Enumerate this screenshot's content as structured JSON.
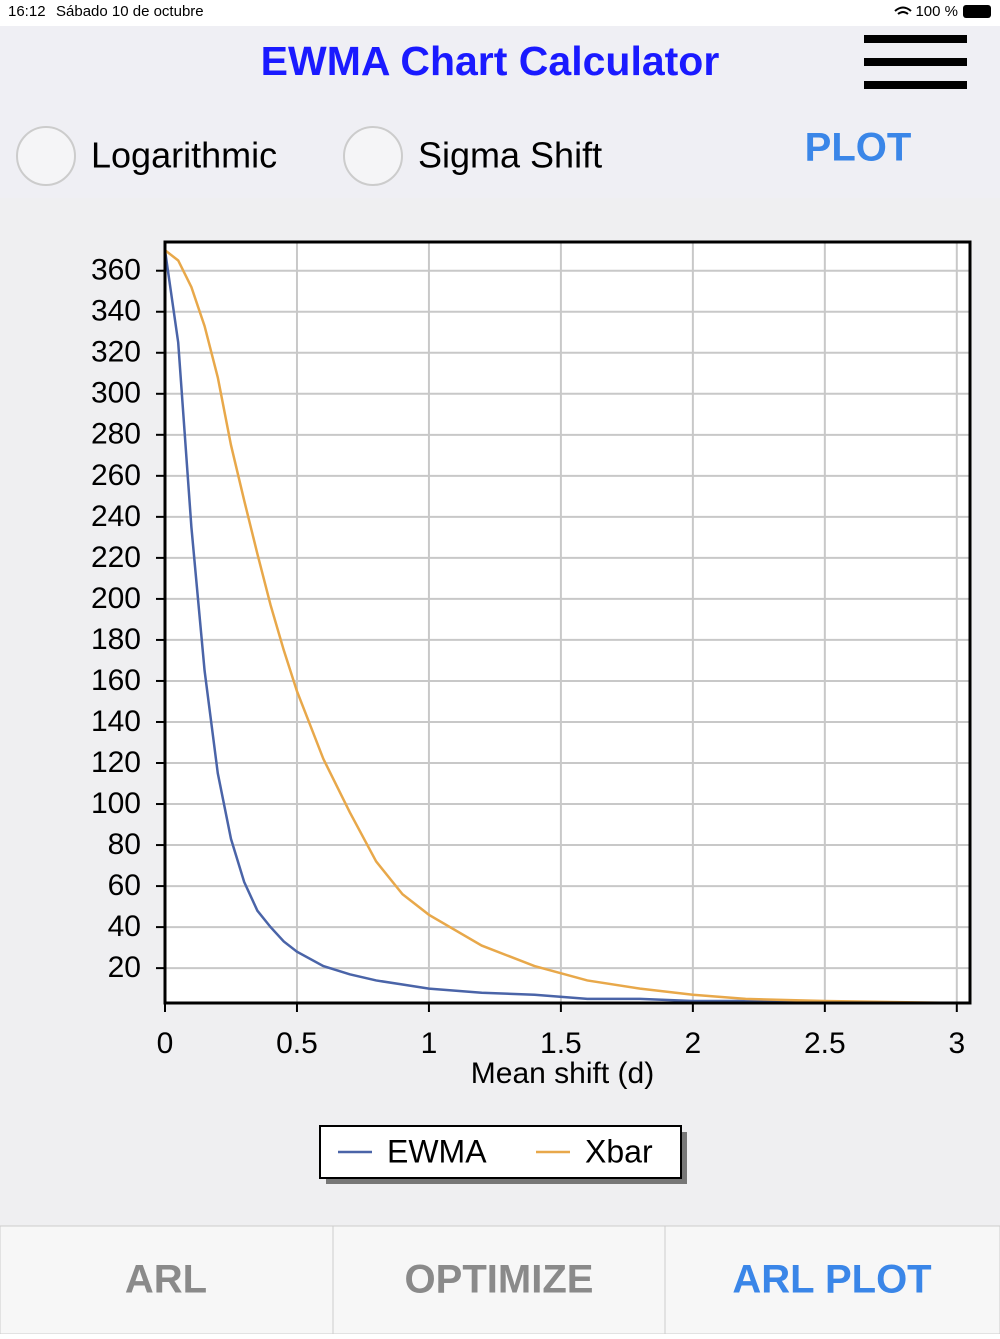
{
  "status_bar": {
    "time": "16:12",
    "date": "Sábado 10 de octubre",
    "battery": "100 %"
  },
  "header": {
    "title": "EWMA Chart Calculator"
  },
  "options": {
    "logarithmic": "Logarithmic",
    "sigma_shift": "Sigma Shift",
    "plot_button": "PLOT"
  },
  "chart_data": {
    "type": "line",
    "x_label": "Mean shift (d)",
    "x": [
      0,
      0.05,
      0.1,
      0.15,
      0.2,
      0.25,
      0.3,
      0.35,
      0.4,
      0.45,
      0.5,
      0.6,
      0.7,
      0.8,
      0.9,
      1,
      1.2,
      1.4,
      1.6,
      1.8,
      2,
      2.2,
      2.5,
      3,
      3.05
    ],
    "series": [
      {
        "name": "EWMA",
        "color": "#4a64a8",
        "values": [
          370,
          325,
          235,
          165,
          115,
          83,
          62,
          48,
          40,
          33,
          28,
          21,
          17,
          14,
          12,
          10,
          8,
          7,
          5,
          5,
          4,
          4,
          3,
          3,
          3
        ]
      },
      {
        "name": "Xbar",
        "color": "#e8a84a",
        "values": [
          370,
          365,
          352,
          333,
          308,
          275,
          248,
          222,
          197,
          175,
          155,
          122,
          96,
          72,
          56,
          46,
          31,
          21,
          14,
          10,
          7,
          5,
          4,
          3,
          3
        ]
      }
    ],
    "xlim": [
      0,
      3.05
    ],
    "ylim": [
      3,
      374
    ],
    "xticks": [
      0,
      0.5,
      1,
      1.5,
      2,
      2.5,
      3
    ],
    "yticks": [
      20,
      40,
      60,
      80,
      100,
      120,
      140,
      160,
      180,
      200,
      220,
      240,
      260,
      280,
      300,
      320,
      340,
      360
    ],
    "grid": true
  },
  "tabs": [
    "ARL",
    "OPTIMIZE",
    "ARL PLOT"
  ]
}
